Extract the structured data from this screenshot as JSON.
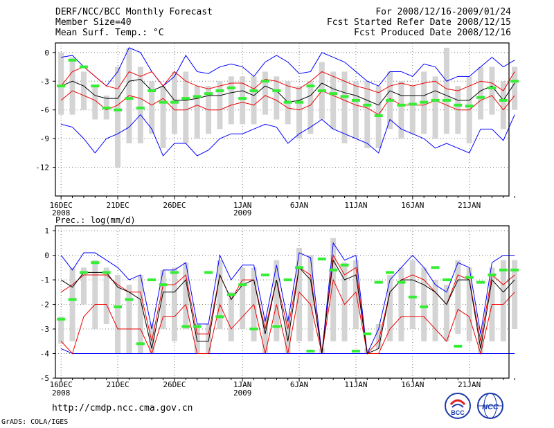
{
  "header": {
    "line1_left": "DERF/NCC/BCC Monthly Forecast",
    "line2_left": "Member Size=40",
    "line3_left": "Mean Surf. Temp.: °C",
    "line1_right": "For 2008/12/16-2009/01/24",
    "line2_right": "Fcst Started Refer Date 2008/12/15",
    "line3_right": "Fcst Produced Date 2008/12/16"
  },
  "footer": {
    "url": "http://cmdp.ncc.cma.gov.cn",
    "credit": "GrADS: COLA/IGES",
    "logo_bcc": "BCC",
    "logo_ncc": "NCC"
  },
  "colors": {
    "envelope": "#0000ff",
    "spread": "#ee0000",
    "mean": "#000000",
    "box": "#d4d4d4",
    "marker": "#33ee33"
  },
  "chart_data": [
    {
      "type": "line",
      "title": "Mean Surf. Temp.: °C",
      "xlabel": "",
      "ylabel": "°C",
      "x_tick_labels": [
        "16DEC",
        "21DEC",
        "26DEC",
        "1JAN",
        "6JAN",
        "11JAN",
        "16JAN",
        "21JAN"
      ],
      "x_tick_days": [
        1,
        6,
        11,
        17,
        22,
        27,
        32,
        37
      ],
      "sub_labels": [
        {
          "day": 1,
          "text": "2008"
        },
        {
          "day": 17,
          "text": "2009"
        }
      ],
      "yticks": [
        0,
        -3,
        -6,
        -9,
        -12
      ],
      "ylim": [
        -15,
        1
      ],
      "xlim": [
        0.5,
        40.5
      ],
      "grid": true,
      "series": [
        {
          "name": "max",
          "values": [
            -0.5,
            -0.3,
            -1.5,
            -2.5,
            -3.5,
            -2,
            0.5,
            0,
            -2,
            -3.5,
            -2.5,
            -0.3,
            -2,
            -2.2,
            -1.5,
            -1.2,
            -1.5,
            -2.5,
            -1,
            -0.3,
            -1,
            -2.2,
            -2,
            0,
            -0.5,
            -1,
            -2,
            -3,
            -3.5,
            -2,
            -2,
            -2.5,
            -1.2,
            -1.5,
            -3,
            -2.5,
            -2.5,
            -1.5,
            -0.5,
            -1.5,
            -0.8
          ]
        },
        {
          "name": "upper",
          "values": [
            -3.5,
            -2,
            -1.5,
            -2.5,
            -3.5,
            -3.8,
            -2,
            -2.5,
            -2,
            -3.5,
            -2,
            -3,
            -3.5,
            -3.8,
            -3.5,
            -3.2,
            -3.2,
            -3.8,
            -2.8,
            -3,
            -3.5,
            -3.8,
            -3,
            -2,
            -2.5,
            -3,
            -3.5,
            -3.8,
            -4.2,
            -3.5,
            -3.2,
            -3.5,
            -3.2,
            -3,
            -3.8,
            -4,
            -3.5,
            -3,
            -3.2,
            -4,
            -2
          ]
        },
        {
          "name": "mean",
          "values": [
            -3.5,
            -3,
            -3.5,
            -4.5,
            -4.8,
            -4.8,
            -3,
            -2.8,
            -4,
            -3.5,
            -5,
            -5,
            -4.8,
            -4.5,
            -4.5,
            -4.2,
            -4,
            -4.5,
            -3.5,
            -4,
            -5.2,
            -5,
            -4.5,
            -3.2,
            -3.8,
            -4.2,
            -4.5,
            -5,
            -5.5,
            -4,
            -4.5,
            -4.5,
            -4.5,
            -4,
            -4.5,
            -5,
            -5,
            -4,
            -3.5,
            -5,
            -3.2
          ]
        },
        {
          "name": "lower",
          "values": [
            -5,
            -4,
            -4.5,
            -5,
            -6,
            -5.5,
            -4.5,
            -4.8,
            -5.5,
            -4.8,
            -6,
            -6,
            -5.5,
            -6,
            -6,
            -5.5,
            -5.2,
            -5.5,
            -4.5,
            -5,
            -5.8,
            -6,
            -5.5,
            -4,
            -4.5,
            -5,
            -5.5,
            -5.8,
            -6.5,
            -4.8,
            -5.5,
            -5.5,
            -5.5,
            -5,
            -5.5,
            -6,
            -6,
            -5,
            -4.5,
            -6,
            -4.5
          ]
        },
        {
          "name": "min",
          "values": [
            -7.5,
            -7.8,
            -9,
            -10.5,
            -9,
            -8.5,
            -7.8,
            -6.5,
            -8,
            -10.8,
            -9.5,
            -9.5,
            -10.8,
            -10.2,
            -9,
            -8.5,
            -8.5,
            -8,
            -7.5,
            -7.8,
            -9.5,
            -8.5,
            -7.8,
            -7,
            -8,
            -8.5,
            -9,
            -9.5,
            -10.5,
            -7,
            -8,
            -8.5,
            -9,
            -10,
            -9.5,
            -10,
            -10.5,
            -8,
            -8,
            -9.2,
            -6.5
          ]
        },
        {
          "name": "box_top",
          "values": [
            0,
            -0.5,
            -2,
            -3.5,
            -4.5,
            -1.5,
            0.5,
            -1.5,
            -3,
            -3.5,
            -2,
            -2,
            -3.5,
            -3.5,
            -3,
            -2.5,
            -2.5,
            -2.5,
            -2,
            -2.5,
            -3,
            -3.5,
            -3,
            -1,
            -2,
            -2,
            -3,
            -3,
            -3.5,
            -2,
            -3,
            -3.5,
            -2,
            -2.5,
            0.5,
            -3.5,
            -2.5,
            -1.5,
            -1.5,
            -3,
            -1.5
          ]
        },
        {
          "name": "box_bottom",
          "values": [
            -6.5,
            -6.5,
            -6,
            -7,
            -7,
            -12,
            -9.5,
            -9.5,
            -8.5,
            -10,
            -8.5,
            -9.5,
            -9,
            -8.5,
            -8,
            -7.5,
            -7.5,
            -7.5,
            -6.5,
            -7,
            -7.5,
            -9,
            -8.5,
            -7,
            -8,
            -9.5,
            -9,
            -10,
            -10,
            -8,
            -9,
            -8.5,
            -8.5,
            -9,
            -8.5,
            -8.5,
            -9.5,
            -7,
            -6.5,
            -8,
            -6
          ]
        },
        {
          "name": "marker",
          "values": [
            -3.5,
            -0.8,
            -1.5,
            -3.5,
            -5.8,
            -6,
            -4.8,
            -5.8,
            -4,
            -5.2,
            -5.2,
            -4.8,
            -4.6,
            -4.3,
            -4,
            -3.7,
            -4.8,
            -4,
            -3,
            -4,
            -5.2,
            -5.2,
            -3.5,
            -4,
            -4.3,
            -4.6,
            -5,
            -5.5,
            -6.6,
            -5,
            -5.5,
            -5.4,
            -5.2,
            -5,
            -5,
            -5.5,
            -5.6,
            -4.7,
            -3.7,
            -5,
            -3
          ]
        }
      ]
    },
    {
      "type": "line",
      "title": "Prec.: log(mm/d)",
      "xlabel": "",
      "ylabel": "log(mm/d)",
      "x_tick_labels": [
        "16DEC",
        "21DEC",
        "26DEC",
        "1JAN",
        "6JAN",
        "11JAN",
        "16JAN",
        "21JAN"
      ],
      "x_tick_days": [
        1,
        6,
        11,
        17,
        22,
        27,
        32,
        37
      ],
      "sub_labels": [
        {
          "day": 1,
          "text": "2008"
        },
        {
          "day": 17,
          "text": "2009"
        }
      ],
      "yticks": [
        1,
        0,
        -1,
        -2,
        -3,
        -4,
        -5
      ],
      "ylim": [
        -5,
        1.2
      ],
      "xlim": [
        0.5,
        40.5
      ],
      "grid": true,
      "series": [
        {
          "name": "max",
          "values": [
            0,
            -0.6,
            0.1,
            0.1,
            -0.2,
            -0.5,
            -1,
            -0.8,
            -3,
            -0.6,
            -0.6,
            -0.3,
            -2.8,
            -2.8,
            0,
            -1,
            -0.4,
            -0.4,
            -2.7,
            -0.4,
            -2.7,
            0.1,
            -0.1,
            -4,
            0.5,
            -0.2,
            0,
            -4,
            -3,
            -1,
            -0.5,
            0,
            -0.5,
            -1.2,
            -1.5,
            -0.3,
            -0.5,
            -3.2,
            -0.3,
            0,
            0
          ]
        },
        {
          "name": "upper",
          "values": [
            -1.5,
            -1.2,
            -0.8,
            -0.8,
            -0.8,
            -1.2,
            -1.5,
            -1.5,
            -3.5,
            -1.2,
            -1.2,
            -0.8,
            -3.2,
            -3.2,
            -0.8,
            -1.8,
            -1,
            -1,
            -3,
            -1,
            -3,
            -0.5,
            -0.8,
            -4,
            0,
            -0.8,
            -0.5,
            -4,
            -3.5,
            -1.5,
            -1,
            -0.8,
            -1,
            -1.5,
            -2,
            -0.8,
            -1,
            -3.5,
            -0.8,
            -1.2,
            -0.8
          ]
        },
        {
          "name": "mean",
          "values": [
            -1,
            -1.3,
            -0.7,
            -0.7,
            -0.7,
            -1.3,
            -1.5,
            -1.8,
            -3.8,
            -1.5,
            -1.5,
            -1,
            -3.5,
            -3.5,
            -0.8,
            -1.8,
            -1.2,
            -1,
            -3.2,
            -1,
            -3.5,
            -0.5,
            -1,
            -4,
            -0.2,
            -1,
            -0.8,
            -4,
            -3.8,
            -1.5,
            -1,
            -1,
            -1.2,
            -1.5,
            -2,
            -1,
            -1,
            -3.8,
            -1,
            -1.5,
            -1
          ]
        },
        {
          "name": "lower",
          "values": [
            -3.5,
            -4,
            -2.5,
            -2,
            -2,
            -3,
            -3,
            -3,
            -4,
            -2.5,
            -2.5,
            -2,
            -4,
            -4,
            -2,
            -3,
            -2.5,
            -2,
            -4,
            -2,
            -4,
            -1.5,
            -2,
            -4,
            -1,
            -2,
            -1.5,
            -4,
            -4,
            -3,
            -2.5,
            -2.5,
            -2.5,
            -3,
            -3.5,
            -2.2,
            -2.5,
            -4,
            -2,
            -2,
            -1.5
          ]
        },
        {
          "name": "min",
          "values": [
            -3.8,
            -4,
            -4,
            -4,
            -4,
            -4,
            -4,
            -4,
            -4,
            -4,
            -4,
            -4,
            -4,
            -4,
            -4,
            -4,
            -4,
            -4,
            -4,
            -4,
            -4,
            -4,
            -4,
            -4,
            -4,
            -4,
            -4,
            -4,
            -4,
            -4,
            -4,
            -4,
            -4,
            -4,
            -4,
            -4,
            -4,
            -4,
            -4,
            -4,
            -4
          ]
        },
        {
          "name": "box_top",
          "values": [
            -2.5,
            -0.5,
            -0.5,
            -0.2,
            -0.5,
            -0.8,
            -1.2,
            -0.8,
            -2.8,
            -0.6,
            -0.5,
            -0.3,
            -2.8,
            -2.8,
            -0.2,
            -1.5,
            -0.5,
            -0.5,
            -2.5,
            -0.2,
            -2.5,
            0.3,
            0,
            -3.8,
            0.7,
            -0.3,
            -0.2,
            -3.8,
            -2.8,
            -0.8,
            -0.5,
            -0.2,
            -0.5,
            -1,
            -1.2,
            -0.2,
            -0.5,
            -3.2,
            -0.5,
            -0.2,
            -0.2
          ]
        },
        {
          "name": "box_bottom",
          "values": [
            -3.6,
            -3.5,
            -2,
            -3,
            -2.8,
            -4,
            -4,
            -4,
            -4,
            -3,
            -3.5,
            -3,
            -4,
            -4,
            -3,
            -3.5,
            -3,
            -3.5,
            -4,
            -3.5,
            -4,
            -3.5,
            -3.5,
            -4,
            -3.5,
            -3.5,
            -3,
            -4,
            -3.8,
            -3.5,
            -3.5,
            -3,
            -3.5,
            -3.5,
            -3.5,
            -3.2,
            -3.5,
            -4,
            -3.5,
            -3.5,
            -3
          ]
        },
        {
          "name": "marker",
          "values": [
            -2.6,
            -1.8,
            -0.7,
            -0.3,
            -0.7,
            -2.1,
            -1.8,
            -3.6,
            -1,
            -1.2,
            -0.7,
            -2.9,
            -2.9,
            -0.7,
            -2.5,
            -1.6,
            -1.2,
            -3,
            -0.8,
            -2.9,
            -1,
            -0.5,
            -3.9,
            -0.15,
            -0.6,
            -0.4,
            -3.9,
            -3.2,
            -1.1,
            -0.7,
            -1.1,
            -1.7,
            -2.1,
            -0.5,
            -1,
            -3.7,
            -0.9,
            -1.1,
            -0.8,
            -0.6,
            -0.6
          ]
        }
      ]
    }
  ]
}
